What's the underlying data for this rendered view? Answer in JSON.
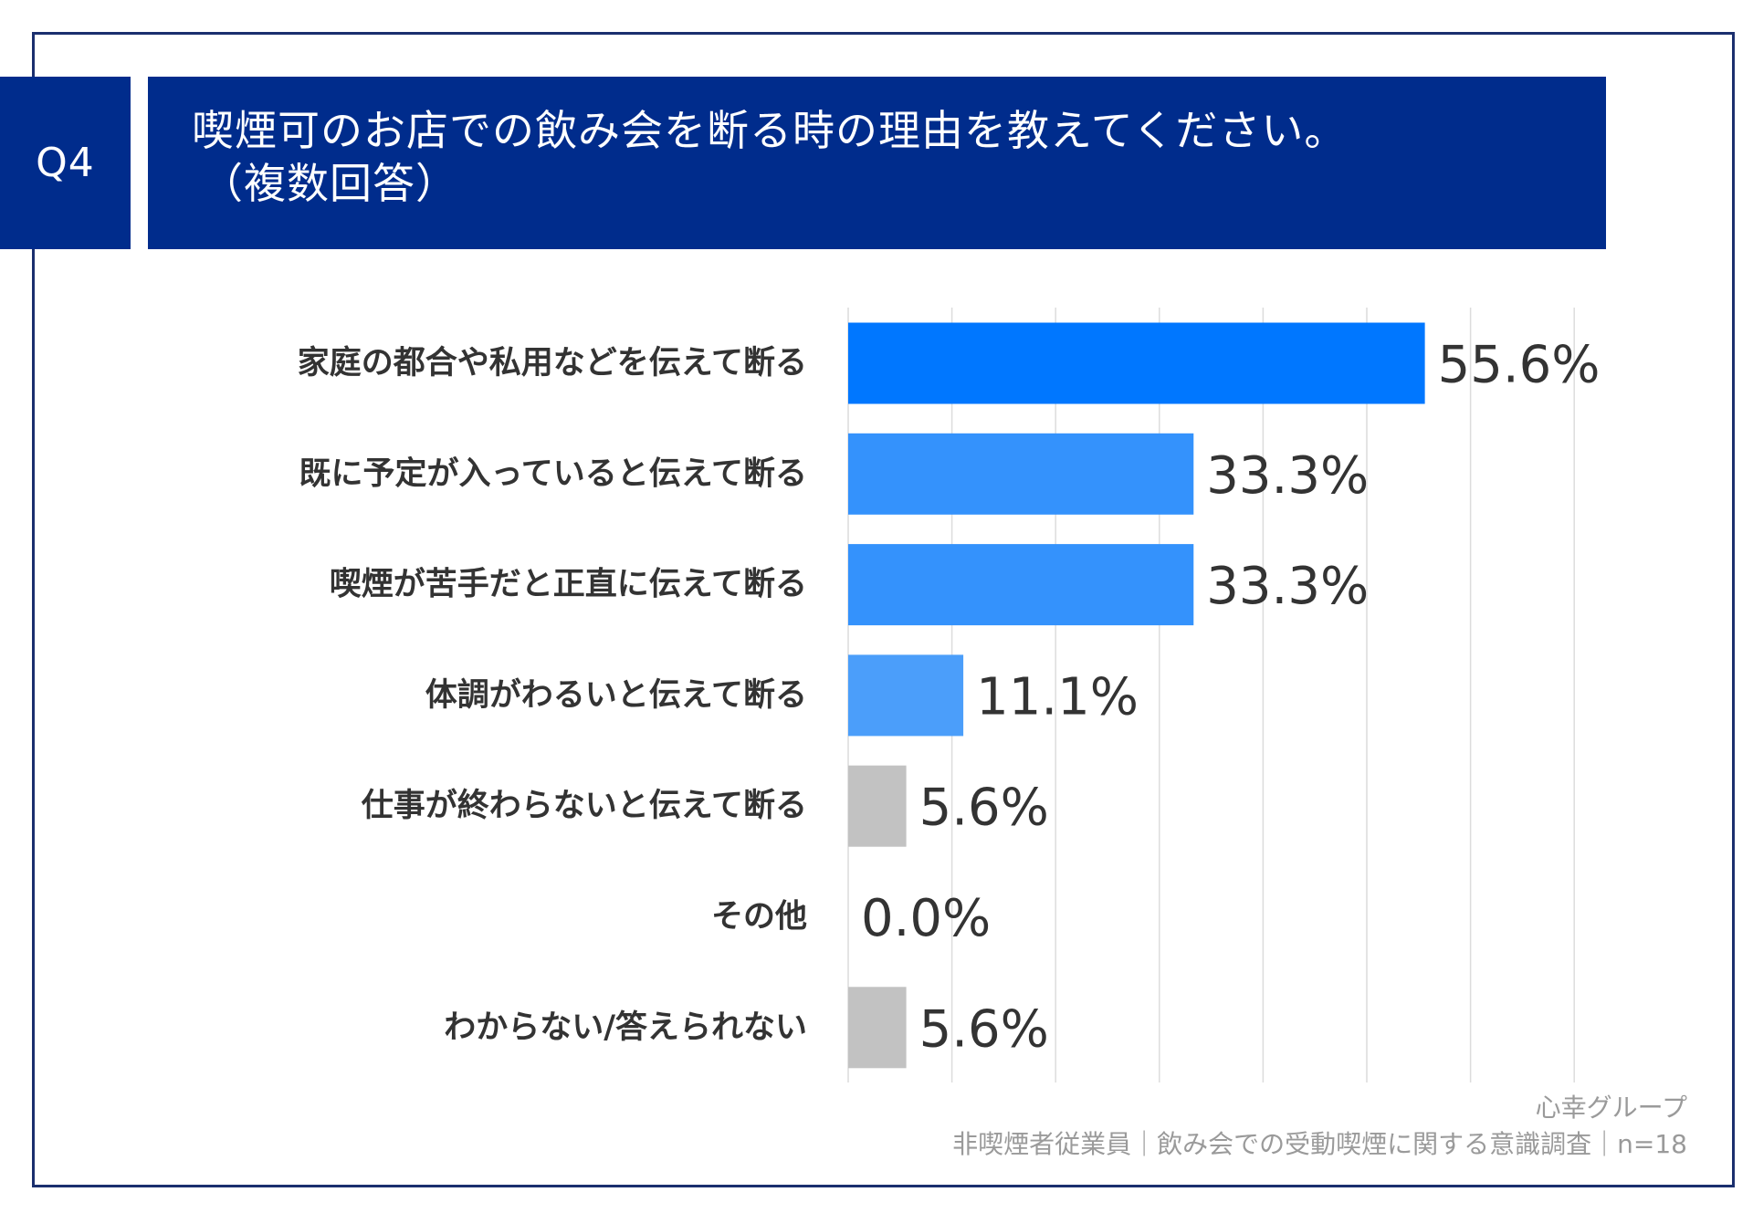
{
  "header": {
    "question_id": "Q4",
    "title_line1": "喫煙可のお店での飲み会を断る時の理由を教えてください。",
    "title_line2": "（複数回答）"
  },
  "chart_data": {
    "type": "bar",
    "orientation": "horizontal",
    "title": "喫煙可のお店での飲み会を断る時の理由を教えてください。（複数回答）",
    "categories": [
      "家庭の都合や私用などを伝えて断る",
      "既に予定が入っていると伝えて断る",
      "喫煙が苦手だと正直に伝えて断る",
      "体調がわるいと伝えて断る",
      "仕事が終わらないと伝えて断る",
      "その他",
      "わからない/答えられない"
    ],
    "values": [
      55.6,
      33.3,
      33.3,
      11.1,
      5.6,
      0.0,
      5.6
    ],
    "value_labels": [
      "55.6%",
      "33.3%",
      "33.3%",
      "11.1%",
      "5.6%",
      "0.0%",
      "5.6%"
    ],
    "bar_colors": [
      "#0077ff",
      "#3492fc",
      "#3492fc",
      "#4b9efa",
      "#c2c2c2",
      "#c2c2c2",
      "#c2c2c2"
    ],
    "xlim": [
      0,
      70
    ],
    "grid_step": 10,
    "grid": true,
    "xlabel": "",
    "ylabel": ""
  },
  "footer": {
    "brand": "心幸グループ",
    "source": "非喫煙者従業員｜飲み会での受動喫煙に関する意識調査｜n=18"
  }
}
